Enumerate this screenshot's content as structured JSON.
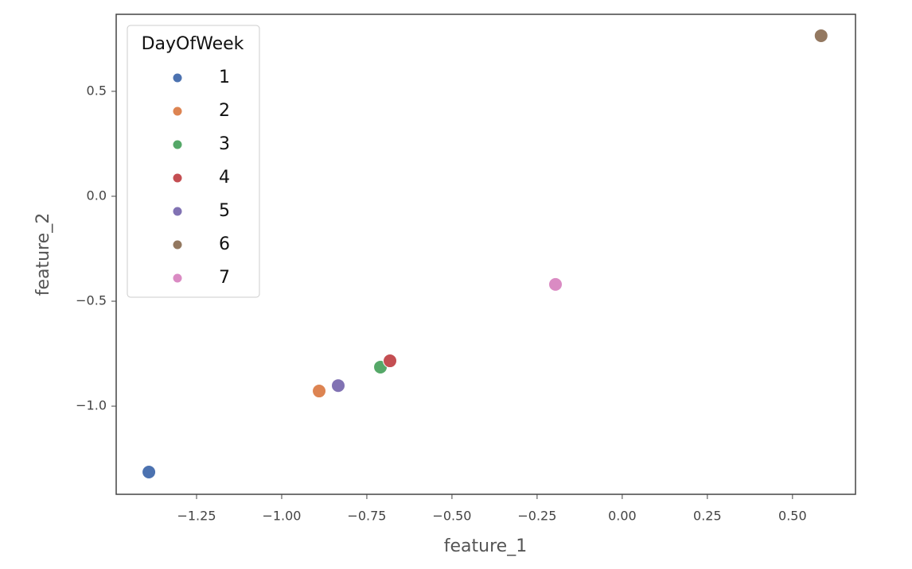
{
  "chart_data": {
    "type": "scatter",
    "x_label": "feature_1",
    "y_label": "feature_2",
    "legend_title": "DayOfWeek",
    "legend": "upper left",
    "xlim": [
      -1.486,
      0.685
    ],
    "ylim": [
      -1.42,
      0.867
    ],
    "xticks": [
      {
        "value": -1.25,
        "label": "−1.25"
      },
      {
        "value": -1.0,
        "label": "−1.00"
      },
      {
        "value": -0.75,
        "label": "−0.75"
      },
      {
        "value": -0.5,
        "label": "−0.50"
      },
      {
        "value": -0.25,
        "label": "−0.25"
      },
      {
        "value": 0,
        "label": "0.00"
      },
      0.25,
      {
        "value": 0.5,
        "label": "0.50"
      }
    ],
    "yticks": [
      {
        "value": -1.0,
        "label": "−1.0"
      },
      {
        "value": -0.5,
        "label": "−0.5"
      },
      {
        "value": 0,
        "label": "0.0"
      },
      0.5
    ],
    "series": [
      {
        "name": "1",
        "color": "#4c72b0",
        "x": [
          -1.39
        ],
        "values": [
          -1.314
        ]
      },
      {
        "name": "2",
        "color": "#dd8452",
        "x": [
          -0.89
        ],
        "values": [
          -0.928
        ]
      },
      {
        "name": "3",
        "color": "#55a868",
        "x": [
          -0.71
        ],
        "values": [
          -0.814
        ]
      },
      {
        "name": "4",
        "color": "#c44e52",
        "x": [
          -0.682
        ],
        "values": [
          -0.784
        ]
      },
      {
        "name": "5",
        "color": "#8172b3",
        "x": [
          -0.834
        ],
        "values": [
          -0.902
        ]
      },
      {
        "name": "6",
        "color": "#937860",
        "x": [
          0.584
        ],
        "values": [
          0.765
        ]
      },
      {
        "name": "7",
        "color": "#da8bc3",
        "x": [
          -0.196
        ],
        "values": [
          -0.42
        ]
      }
    ]
  }
}
